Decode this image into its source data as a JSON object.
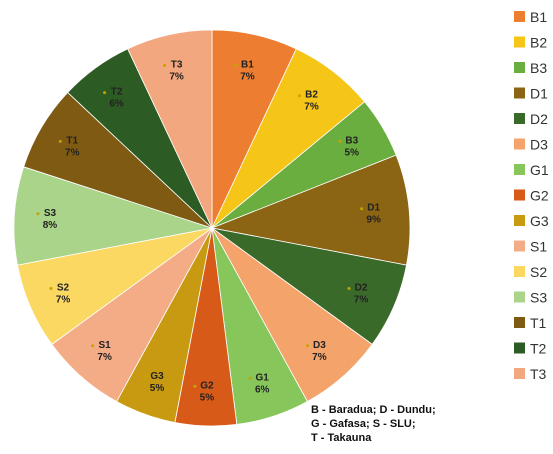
{
  "chart_data": {
    "type": "pie",
    "slices": [
      {
        "name": "B1",
        "value": 7,
        "label": "7%",
        "color": "#ED7D31"
      },
      {
        "name": "B2",
        "value": 7,
        "label": "7%",
        "color": "#F5C518"
      },
      {
        "name": "B3",
        "value": 5,
        "label": "5%",
        "color": "#6AAE3F"
      },
      {
        "name": "D1",
        "value": 9,
        "label": "9%",
        "color": "#8B6414"
      },
      {
        "name": "D2",
        "value": 7,
        "label": "7%",
        "color": "#3A6A2A"
      },
      {
        "name": "D3",
        "value": 7,
        "label": "7%",
        "color": "#F4A46B"
      },
      {
        "name": "G1",
        "value": 6,
        "label": "6%",
        "color": "#86C65A"
      },
      {
        "name": "G2",
        "value": 5,
        "label": "5%",
        "color": "#D85A18"
      },
      {
        "name": "G3",
        "value": 5,
        "label": "5%",
        "color": "#C89A12"
      },
      {
        "name": "S1",
        "value": 7,
        "label": "7%",
        "color": "#F4AC87"
      },
      {
        "name": "S2",
        "value": 7,
        "label": "7%",
        "color": "#FBD862"
      },
      {
        "name": "S3",
        "value": 8,
        "label": "8%",
        "color": "#A9D48A"
      },
      {
        "name": "T1",
        "value": 7,
        "label": "7%",
        "color": "#7E5A12"
      },
      {
        "name": "T2",
        "value": 6,
        "label": "6%",
        "color": "#2D5B24"
      },
      {
        "name": "T3",
        "value": 7,
        "label": "7%",
        "color": "#F3A77E"
      }
    ],
    "legend_position": "right",
    "note_lines": [
      "B - Baradua; D - Dundu;",
      "G - Gafasa; S - SLU;",
      "T - Takauna"
    ]
  }
}
